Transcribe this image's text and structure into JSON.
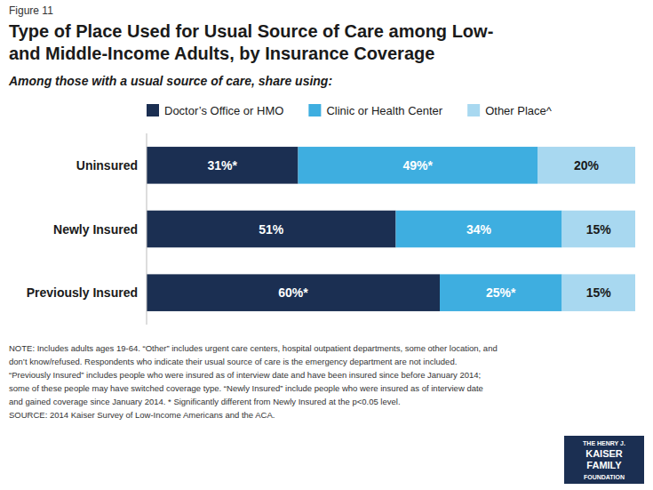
{
  "chart_data": {
    "type": "bar",
    "orientation": "horizontal",
    "stacked": true,
    "data_labels": true,
    "grid": false,
    "legend": "top",
    "tick_labels": "y",
    "label": "Figure 11",
    "title": [
      "Type of Place Used for Usual Source of Care among Low-",
      "and Middle-Income Adults, by Insurance Coverage"
    ],
    "subtitle": "Among those with a usual source of care, share using:",
    "categories": [
      "Uninsured",
      "Newly Insured",
      "Previously Insured"
    ],
    "series": [
      {
        "name": "Doctor’s Office or HMO",
        "values": [
          31,
          51,
          60
        ],
        "value_labels": [
          "31%*",
          "51%",
          "60%*"
        ],
        "color": "#1b2f52"
      },
      {
        "name": "Clinic or Health Center",
        "values": [
          49,
          34,
          25
        ],
        "value_labels": [
          "49%*",
          "34%",
          "25%*"
        ],
        "color": "#3eaee0"
      },
      {
        "name": "Other Place^",
        "values": [
          20,
          15,
          15
        ],
        "value_labels": [
          "20%",
          "15%",
          "15%"
        ],
        "color": "#a8d8f0"
      }
    ],
    "xlim": [
      0,
      100
    ],
    "notes": [
      "NOTE: Includes adults ages 19-64. “Other” includes urgent care centers, hospital outpatient departments, some other location, and",
      "don’t know/refused. Respondents who indicate their usual source of care is the emergency department are not included.",
      "“Previously Insured” includes people who were insured as of interview date and have been insured since before January 2014;",
      "some of these people may have switched coverage type. “Newly Insured” include people who were insured as of interview date",
      "and gained coverage since January 2014. * Significantly different from Newly Insured at the p<0.05 level.",
      "SOURCE: 2014 Kaiser Survey of Low-Income Americans and the ACA."
    ],
    "logo": [
      "THE HENRY J.",
      "KAISER",
      "FAMILY",
      "FOUNDATION"
    ]
  }
}
